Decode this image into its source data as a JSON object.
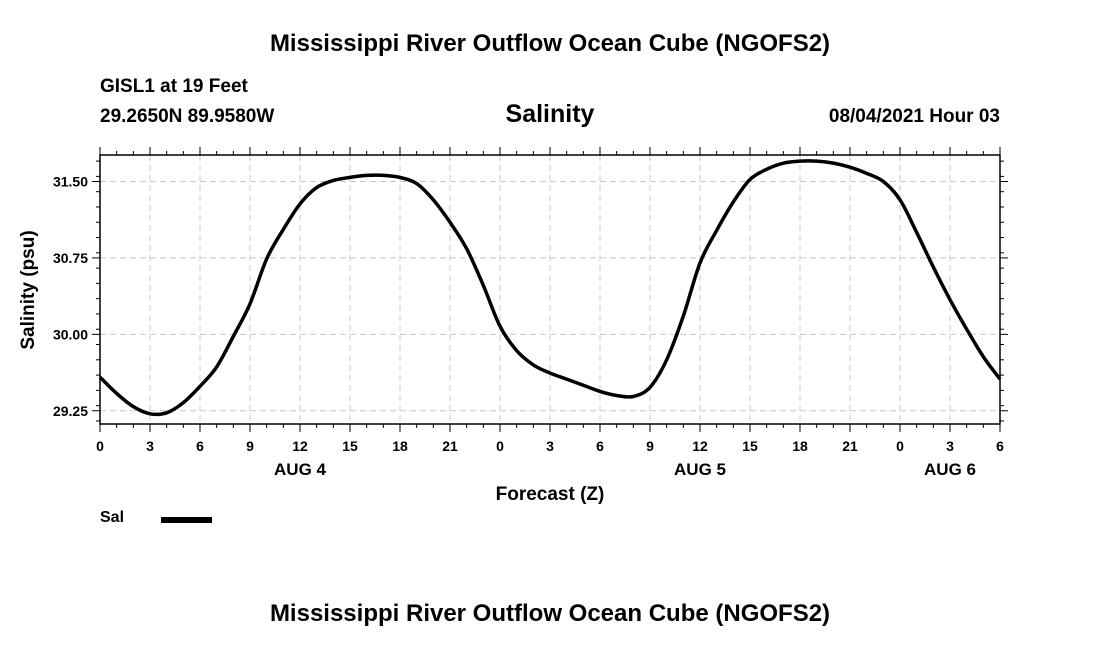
{
  "header": {
    "top_title": "Mississippi River Outflow Ocean Cube (NGOFS2)",
    "station": "GISL1 at 19 Feet",
    "coords": "29.2650N  89.9580W",
    "variable_title": "Salinity",
    "timestamp": "08/04/2021 Hour 03",
    "bottom_title": "Mississippi River Outflow Ocean Cube (NGOFS2)"
  },
  "legend": {
    "label": "Sal",
    "color": "#000000"
  },
  "chart_data": {
    "type": "line",
    "title": "Salinity",
    "xlabel": "Forecast (Z)",
    "ylabel": "Salinity (psu)",
    "xlim": [
      0,
      54
    ],
    "ylim": [
      29.12,
      31.76
    ],
    "grid": true,
    "x_ticks": [
      0,
      3,
      6,
      9,
      12,
      15,
      18,
      21,
      24,
      27,
      30,
      33,
      36,
      39,
      42,
      45,
      48,
      51,
      54
    ],
    "x_tick_labels": [
      "0",
      "3",
      "6",
      "9",
      "12",
      "15",
      "18",
      "21",
      "0",
      "3",
      "6",
      "9",
      "12",
      "15",
      "18",
      "21",
      "0",
      "3",
      "6"
    ],
    "date_labels": [
      {
        "x": 12,
        "label": "AUG 4"
      },
      {
        "x": 36,
        "label": "AUG 5"
      },
      {
        "x": 51,
        "label": "AUG 6"
      }
    ],
    "y_ticks": [
      29.25,
      30.0,
      30.75,
      31.5
    ],
    "y_tick_labels": [
      "29.25",
      "30.00",
      "30.75",
      "31.50"
    ],
    "series": [
      {
        "name": "Sal",
        "color": "#000000",
        "x": [
          0,
          1,
          2,
          3,
          4,
          5,
          6,
          7,
          8,
          9,
          10,
          11,
          12,
          13,
          14,
          15,
          16,
          17,
          18,
          19,
          20,
          21,
          22,
          23,
          24,
          25,
          26,
          27,
          28,
          29,
          30,
          31,
          32,
          33,
          34,
          35,
          36,
          37,
          38,
          39,
          40,
          41,
          42,
          43,
          44,
          45,
          46,
          47,
          48,
          49,
          50,
          51,
          52,
          53,
          54
        ],
        "values": [
          29.58,
          29.42,
          29.29,
          29.22,
          29.23,
          29.33,
          29.49,
          29.68,
          29.98,
          30.3,
          30.74,
          31.03,
          31.28,
          31.44,
          31.51,
          31.54,
          31.56,
          31.56,
          31.54,
          31.48,
          31.32,
          31.1,
          30.84,
          30.48,
          30.08,
          29.84,
          29.7,
          29.62,
          29.56,
          29.5,
          29.44,
          29.4,
          29.39,
          29.48,
          29.75,
          30.18,
          30.7,
          31.02,
          31.3,
          31.52,
          31.62,
          31.68,
          31.7,
          31.7,
          31.68,
          31.64,
          31.58,
          31.5,
          31.32,
          31.0,
          30.66,
          30.34,
          30.05,
          29.78,
          29.56
        ]
      }
    ]
  }
}
